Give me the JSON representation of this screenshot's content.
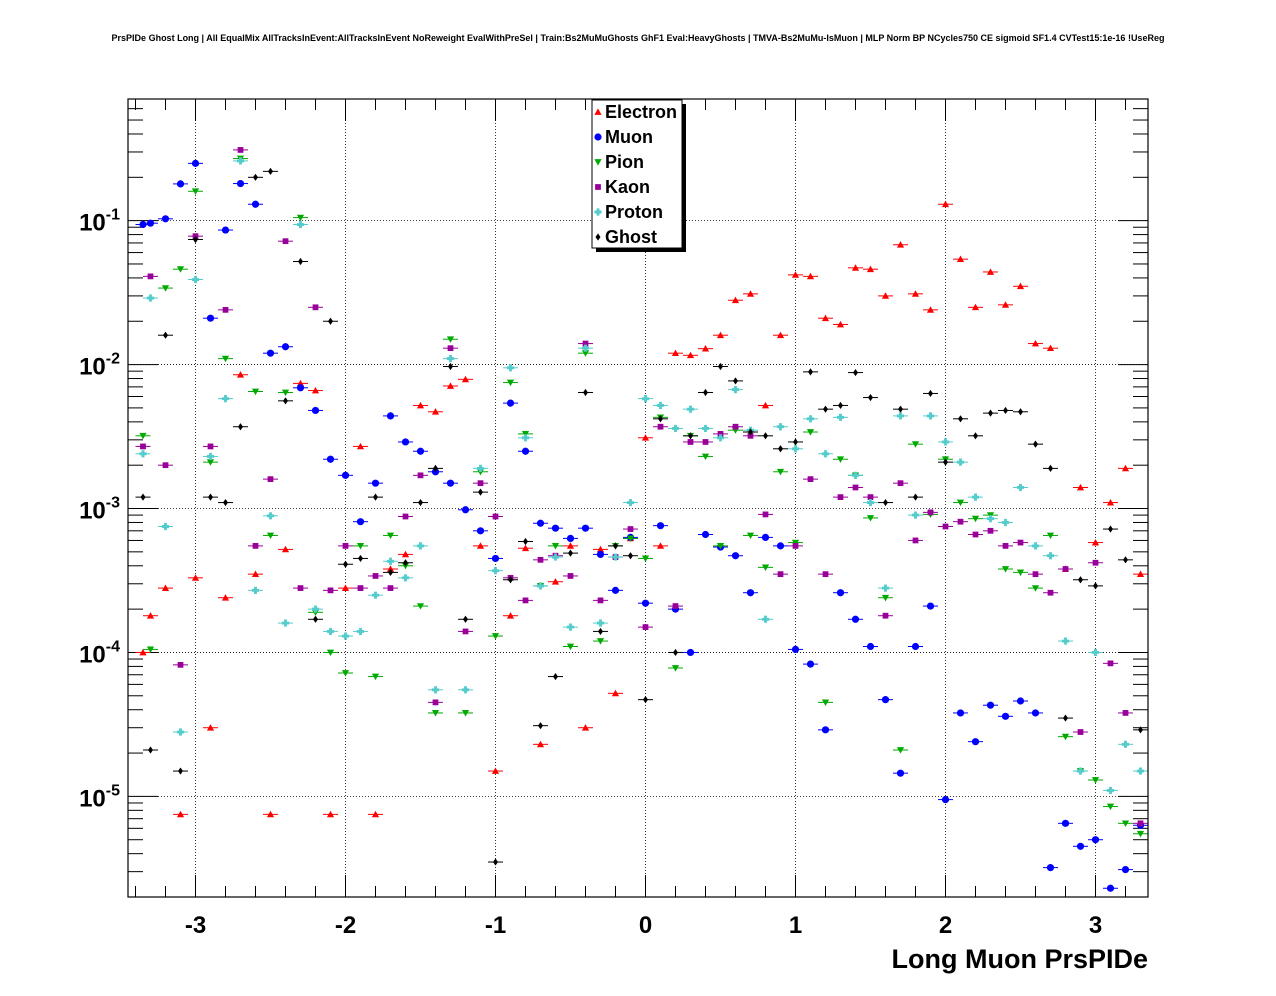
{
  "title": "PrsPIDe Ghost Long | All EqualMix AllTracksInEvent:AllTracksInEvent NoReweight EvalWithPreSel | Train:Bs2MuMuGhosts GhF1 Eval:HeavyGhosts | TMVA-Bs2MuMu-IsMuon | MLP Norm BP NCycles750 CE sigmoid SF1.4 CVTest15:1e-16 !UseReg",
  "chart_data": {
    "type": "scatter",
    "title": "PrsPIDe Ghost Long | All EqualMix AllTracksInEvent:AllTracksInEvent NoReweight EvalWithPreSel | Train:Bs2MuMuGhosts GhF1 Eval:HeavyGhosts | TMVA-Bs2MuMu-IsMuon | MLP Norm BP NCycles750 CE sigmoid SF1.4 CVTest15:1e-16 !UseReg",
    "xlabel": "Long Muon PrsPIDe",
    "ylabel": "",
    "xlim": [
      -3.45,
      3.35
    ],
    "ylim": [
      2e-06,
      0.7
    ],
    "yscale": "log",
    "grid": true,
    "legend_position": "top-center",
    "x_ticks": [
      {
        "value": -3,
        "label": "-3"
      },
      {
        "value": -2,
        "label": "-2"
      },
      {
        "value": -1,
        "label": "-1"
      },
      {
        "value": 0,
        "label": "0"
      },
      {
        "value": 1,
        "label": "1"
      },
      {
        "value": 2,
        "label": "2"
      },
      {
        "value": 3,
        "label": "3"
      }
    ],
    "y_ticks": [
      {
        "value": 0.1,
        "base": "10",
        "exp": "-1"
      },
      {
        "value": 0.01,
        "base": "10",
        "exp": "-2"
      },
      {
        "value": 0.001,
        "base": "10",
        "exp": "-3"
      },
      {
        "value": 0.0001,
        "base": "10",
        "exp": "-4"
      },
      {
        "value": 1e-05,
        "base": "10",
        "exp": "-5"
      }
    ],
    "series": [
      {
        "name": "Electron",
        "color": "#ff0000",
        "marker": "triangle-up",
        "x": [
          -3.35,
          -3.3,
          -3.2,
          -3.1,
          -3.0,
          -2.9,
          -2.8,
          -2.7,
          -2.6,
          -2.5,
          -2.4,
          -2.3,
          -2.2,
          -2.1,
          -2.0,
          -1.9,
          -1.8,
          -1.7,
          -1.6,
          -1.5,
          -1.4,
          -1.3,
          -1.2,
          -1.1,
          -1.0,
          -0.9,
          -0.8,
          -0.7,
          -0.6,
          -0.5,
          -0.4,
          -0.3,
          -0.2,
          -0.1,
          0.0,
          0.1,
          0.2,
          0.3,
          0.4,
          0.5,
          0.6,
          0.7,
          0.8,
          0.9,
          1.0,
          1.1,
          1.2,
          1.3,
          1.4,
          1.5,
          1.6,
          1.7,
          1.8,
          1.9,
          2.0,
          2.1,
          2.2,
          2.3,
          2.4,
          2.5,
          2.6,
          2.7,
          2.8,
          2.9,
          3.0,
          3.1,
          3.2,
          3.3
        ],
        "y": [
          0.0001,
          0.00018,
          0.00028,
          7.5e-06,
          0.00033,
          3e-05,
          0.00024,
          0.0085,
          0.00035,
          7.5e-06,
          0.00052,
          0.0074,
          0.0066,
          7.5e-06,
          0.00028,
          0.0027,
          7.5e-06,
          0.00038,
          0.00048,
          0.0052,
          0.0047,
          0.0071,
          0.0079,
          0.00055,
          1.5e-05,
          0.00018,
          0.00053,
          2.3e-05,
          0.00031,
          0.00055,
          3e-05,
          0.00052,
          5.2e-05,
          0.00062,
          0.0031,
          0.00055,
          0.012,
          0.0116,
          0.0129,
          0.016,
          0.028,
          0.031,
          0.0052,
          0.016,
          0.042,
          0.041,
          0.021,
          0.019,
          0.047,
          0.046,
          0.03,
          0.068,
          0.031,
          0.024,
          0.13,
          0.054,
          0.025,
          0.044,
          0.026,
          0.035,
          0.014,
          0.013,
          0.00038,
          0.0014,
          0.00058,
          0.0011,
          0.0019,
          0.00035
        ]
      },
      {
        "name": "Muon",
        "color": "#0000ff",
        "marker": "circle",
        "x": [
          -3.35,
          -3.3,
          -3.2,
          -3.1,
          -3.0,
          -2.9,
          -2.8,
          -2.7,
          -2.6,
          -2.5,
          -2.4,
          -2.3,
          -2.2,
          -2.1,
          -2.0,
          -1.9,
          -1.8,
          -1.7,
          -1.6,
          -1.5,
          -1.4,
          -1.3,
          -1.2,
          -1.1,
          -1.0,
          -0.9,
          -0.8,
          -0.7,
          -0.6,
          -0.5,
          -0.4,
          -0.3,
          -0.2,
          -0.1,
          0.0,
          0.1,
          0.2,
          0.3,
          0.4,
          0.5,
          0.6,
          0.7,
          0.8,
          0.9,
          1.0,
          1.1,
          1.2,
          1.3,
          1.4,
          1.5,
          1.6,
          1.7,
          1.8,
          1.9,
          2.0,
          2.1,
          2.2,
          2.3,
          2.4,
          2.5,
          2.6,
          2.7,
          2.8,
          2.9,
          3.0,
          3.1,
          3.2,
          3.3
        ],
        "y": [
          0.094,
          0.096,
          0.103,
          0.18,
          0.25,
          0.021,
          0.086,
          0.181,
          0.13,
          0.012,
          0.0133,
          0.0069,
          0.0048,
          0.0022,
          0.0017,
          0.00081,
          0.0015,
          0.0044,
          0.0029,
          0.0025,
          0.0018,
          0.0015,
          0.00098,
          0.0007,
          0.00045,
          0.0054,
          0.0025,
          0.00079,
          0.00073,
          0.00062,
          0.00073,
          0.00048,
          0.00027,
          0.00063,
          0.00022,
          0.00076,
          0.0002,
          0.0001,
          0.00066,
          0.00054,
          0.00047,
          0.00026,
          0.00063,
          0.00055,
          0.000105,
          8.3e-05,
          2.9e-05,
          0.00026,
          0.00017,
          0.00011,
          4.7e-05,
          1.45e-05,
          0.00011,
          0.00021,
          9.5e-06,
          3.8e-05,
          2.4e-05,
          4.3e-05,
          3.6e-05,
          4.6e-05,
          3.8e-05,
          3.2e-06,
          6.5e-06,
          4.5e-06,
          5e-06,
          2.3e-06,
          3.1e-06,
          6.3e-06
        ]
      },
      {
        "name": "Pion",
        "color": "#00aa00",
        "marker": "triangle-down",
        "x": [
          -3.35,
          -3.3,
          -3.2,
          -3.1,
          -3.0,
          -2.9,
          -2.8,
          -2.7,
          -2.6,
          -2.5,
          -2.4,
          -2.3,
          -2.2,
          -2.1,
          -2.0,
          -1.9,
          -1.8,
          -1.7,
          -1.6,
          -1.5,
          -1.4,
          -1.3,
          -1.2,
          -1.1,
          -1.0,
          -0.9,
          -0.8,
          -0.7,
          -0.6,
          -0.5,
          -0.4,
          -0.3,
          -0.2,
          -0.1,
          0.0,
          0.1,
          0.2,
          0.3,
          0.4,
          0.5,
          0.6,
          0.7,
          0.8,
          0.9,
          1.0,
          1.1,
          1.2,
          1.3,
          1.4,
          1.5,
          1.6,
          1.7,
          1.8,
          1.9,
          2.0,
          2.1,
          2.2,
          2.3,
          2.4,
          2.5,
          2.6,
          2.7,
          2.8,
          2.9,
          3.0,
          3.1,
          3.2,
          3.3
        ],
        "y": [
          0.0032,
          0.000105,
          0.034,
          0.046,
          0.16,
          0.0021,
          0.011,
          0.27,
          0.0065,
          0.00065,
          0.0064,
          0.105,
          0.00019,
          0.0001,
          7.2e-05,
          0.00055,
          6.8e-05,
          0.00065,
          0.0004,
          0.00021,
          3.8e-05,
          0.015,
          3.8e-05,
          0.0018,
          0.00013,
          0.0075,
          0.0033,
          0.00029,
          0.00055,
          0.00011,
          0.012,
          0.00012,
          0.00055,
          0.00062,
          0.00045,
          0.0043,
          7.8e-05,
          0.0032,
          0.0023,
          0.00055,
          0.0035,
          0.00065,
          0.00039,
          0.0018,
          0.00058,
          0.0034,
          4.5e-05,
          0.0022,
          0.0017,
          0.00086,
          0.00024,
          2.1e-05,
          0.0028,
          0.00091,
          0.0022,
          0.0011,
          0.00085,
          0.0009,
          0.00038,
          0.00036,
          0.00028,
          0.00065,
          2.6e-05,
          1.5e-05,
          1.3e-05,
          8.5e-06,
          6.5e-06,
          5.5e-06
        ]
      },
      {
        "name": "Kaon",
        "color": "#990099",
        "marker": "square",
        "x": [
          -3.35,
          -3.3,
          -3.2,
          -3.1,
          -3.0,
          -2.9,
          -2.8,
          -2.7,
          -2.6,
          -2.5,
          -2.4,
          -2.3,
          -2.2,
          -2.1,
          -2.0,
          -1.9,
          -1.8,
          -1.7,
          -1.6,
          -1.5,
          -1.4,
          -1.3,
          -1.2,
          -1.1,
          -1.0,
          -0.9,
          -0.8,
          -0.7,
          -0.6,
          -0.5,
          -0.4,
          -0.3,
          -0.2,
          -0.1,
          0.0,
          0.1,
          0.2,
          0.3,
          0.4,
          0.5,
          0.6,
          0.7,
          0.8,
          0.9,
          1.0,
          1.1,
          1.2,
          1.3,
          1.4,
          1.5,
          1.6,
          1.7,
          1.8,
          1.9,
          2.0,
          2.1,
          2.2,
          2.3,
          2.4,
          2.5,
          2.6,
          2.7,
          2.8,
          2.9,
          3.0,
          3.1,
          3.2,
          3.3
        ],
        "y": [
          0.0027,
          0.041,
          0.002,
          8.2e-05,
          0.078,
          0.0027,
          0.024,
          0.31,
          0.00055,
          0.0016,
          0.072,
          0.00028,
          0.025,
          0.00027,
          0.00055,
          0.00028,
          0.00034,
          0.00028,
          0.00088,
          0.0017,
          4.5e-05,
          0.013,
          0.00014,
          0.0015,
          0.00088,
          0.00033,
          0.00023,
          0.00044,
          0.00047,
          0.00034,
          0.014,
          0.00023,
          0.00046,
          0.00072,
          0.00015,
          0.0037,
          0.00021,
          0.0029,
          0.0029,
          0.0033,
          0.0037,
          0.0032,
          0.00091,
          0.00035,
          0.00055,
          0.0016,
          0.00035,
          0.0012,
          0.0014,
          0.0012,
          0.00018,
          0.0015,
          0.0006,
          0.00094,
          0.00075,
          0.00081,
          0.00066,
          0.0007,
          0.00055,
          0.00058,
          0.00035,
          0.00026,
          0.00038,
          2.8e-05,
          0.00042,
          8.4e-05,
          3.8e-05,
          6.5e-06
        ]
      },
      {
        "name": "Proton",
        "color": "#55cccc",
        "marker": "cross",
        "x": [
          -3.35,
          -3.3,
          -3.2,
          -3.1,
          -3.0,
          -2.9,
          -2.8,
          -2.7,
          -2.6,
          -2.5,
          -2.4,
          -2.3,
          -2.2,
          -2.1,
          -2.0,
          -1.9,
          -1.8,
          -1.7,
          -1.6,
          -1.5,
          -1.4,
          -1.3,
          -1.2,
          -1.1,
          -1.0,
          -0.9,
          -0.8,
          -0.7,
          -0.6,
          -0.5,
          -0.4,
          -0.3,
          -0.2,
          -0.1,
          0.0,
          0.1,
          0.2,
          0.3,
          0.4,
          0.5,
          0.6,
          0.7,
          0.8,
          0.9,
          1.0,
          1.1,
          1.2,
          1.3,
          1.4,
          1.5,
          1.6,
          1.7,
          1.8,
          1.9,
          2.0,
          2.1,
          2.2,
          2.3,
          2.4,
          2.5,
          2.6,
          2.7,
          2.8,
          2.9,
          3.0,
          3.1,
          3.2,
          3.3
        ],
        "y": [
          0.0024,
          0.029,
          0.00075,
          2.8e-05,
          0.039,
          0.0023,
          0.0058,
          0.26,
          0.00027,
          0.00089,
          0.00016,
          0.094,
          0.0002,
          0.00014,
          0.00013,
          0.00014,
          0.00025,
          0.00043,
          0.00033,
          0.00055,
          5.5e-05,
          0.011,
          5.5e-05,
          0.0019,
          0.00037,
          0.0095,
          0.0031,
          0.00029,
          0.00046,
          0.00015,
          0.013,
          0.00016,
          0.00046,
          0.0011,
          0.0058,
          0.0052,
          0.0036,
          0.0049,
          0.0036,
          0.0031,
          0.0067,
          0.0035,
          0.00017,
          0.0037,
          0.0026,
          0.0042,
          0.0024,
          0.0043,
          0.0017,
          0.0011,
          0.00028,
          0.0044,
          0.0009,
          0.0044,
          0.0029,
          0.0021,
          0.0012,
          0.00085,
          0.0008,
          0.0014,
          0.00055,
          0.00047,
          0.00012,
          1.5e-05,
          0.0001,
          1.1e-05,
          2.3e-05,
          1.5e-05
        ]
      },
      {
        "name": "Ghost",
        "color": "#000000",
        "marker": "diamond",
        "x": [
          -3.35,
          -3.3,
          -3.2,
          -3.1,
          -3.0,
          -2.9,
          -2.8,
          -2.7,
          -2.6,
          -2.5,
          -2.4,
          -2.3,
          -2.2,
          -2.1,
          -2.0,
          -1.9,
          -1.8,
          -1.7,
          -1.6,
          -1.5,
          -1.4,
          -1.3,
          -1.2,
          -1.1,
          -1.0,
          -0.9,
          -0.8,
          -0.7,
          -0.6,
          -0.5,
          -0.4,
          -0.3,
          -0.2,
          -0.1,
          0.0,
          0.1,
          0.2,
          0.3,
          0.4,
          0.5,
          0.6,
          0.7,
          0.8,
          0.9,
          1.0,
          1.1,
          1.2,
          1.3,
          1.4,
          1.5,
          1.6,
          1.7,
          1.8,
          1.9,
          2.0,
          2.1,
          2.2,
          2.3,
          2.4,
          2.5,
          2.6,
          2.7,
          2.8,
          2.9,
          3.0,
          3.1,
          3.2,
          3.3
        ],
        "y": [
          0.0012,
          2.1e-05,
          0.016,
          1.5e-05,
          0.074,
          0.0012,
          0.0011,
          0.0037,
          0.2,
          0.22,
          0.0056,
          0.052,
          0.00017,
          0.02,
          0.00041,
          0.00045,
          0.0012,
          0.00036,
          0.00042,
          0.0011,
          0.0019,
          0.0097,
          0.00017,
          0.0013,
          3.5e-06,
          0.00032,
          0.00059,
          3.1e-05,
          6.8e-05,
          0.00049,
          0.0064,
          0.00014,
          0.00055,
          0.00047,
          4.7e-05,
          0.0042,
          0.0001,
          0.0032,
          0.0064,
          0.0097,
          0.0077,
          0.0034,
          0.0032,
          0.0026,
          0.0029,
          0.0089,
          0.0049,
          0.0052,
          0.0088,
          0.0059,
          0.0011,
          0.0049,
          0.0012,
          0.0063,
          0.0021,
          0.0042,
          0.0032,
          0.0046,
          0.0048,
          0.0047,
          0.0028,
          0.0019,
          3.5e-05,
          0.00032,
          0.00029,
          0.00072,
          0.00044,
          2.9e-05
        ]
      }
    ]
  }
}
